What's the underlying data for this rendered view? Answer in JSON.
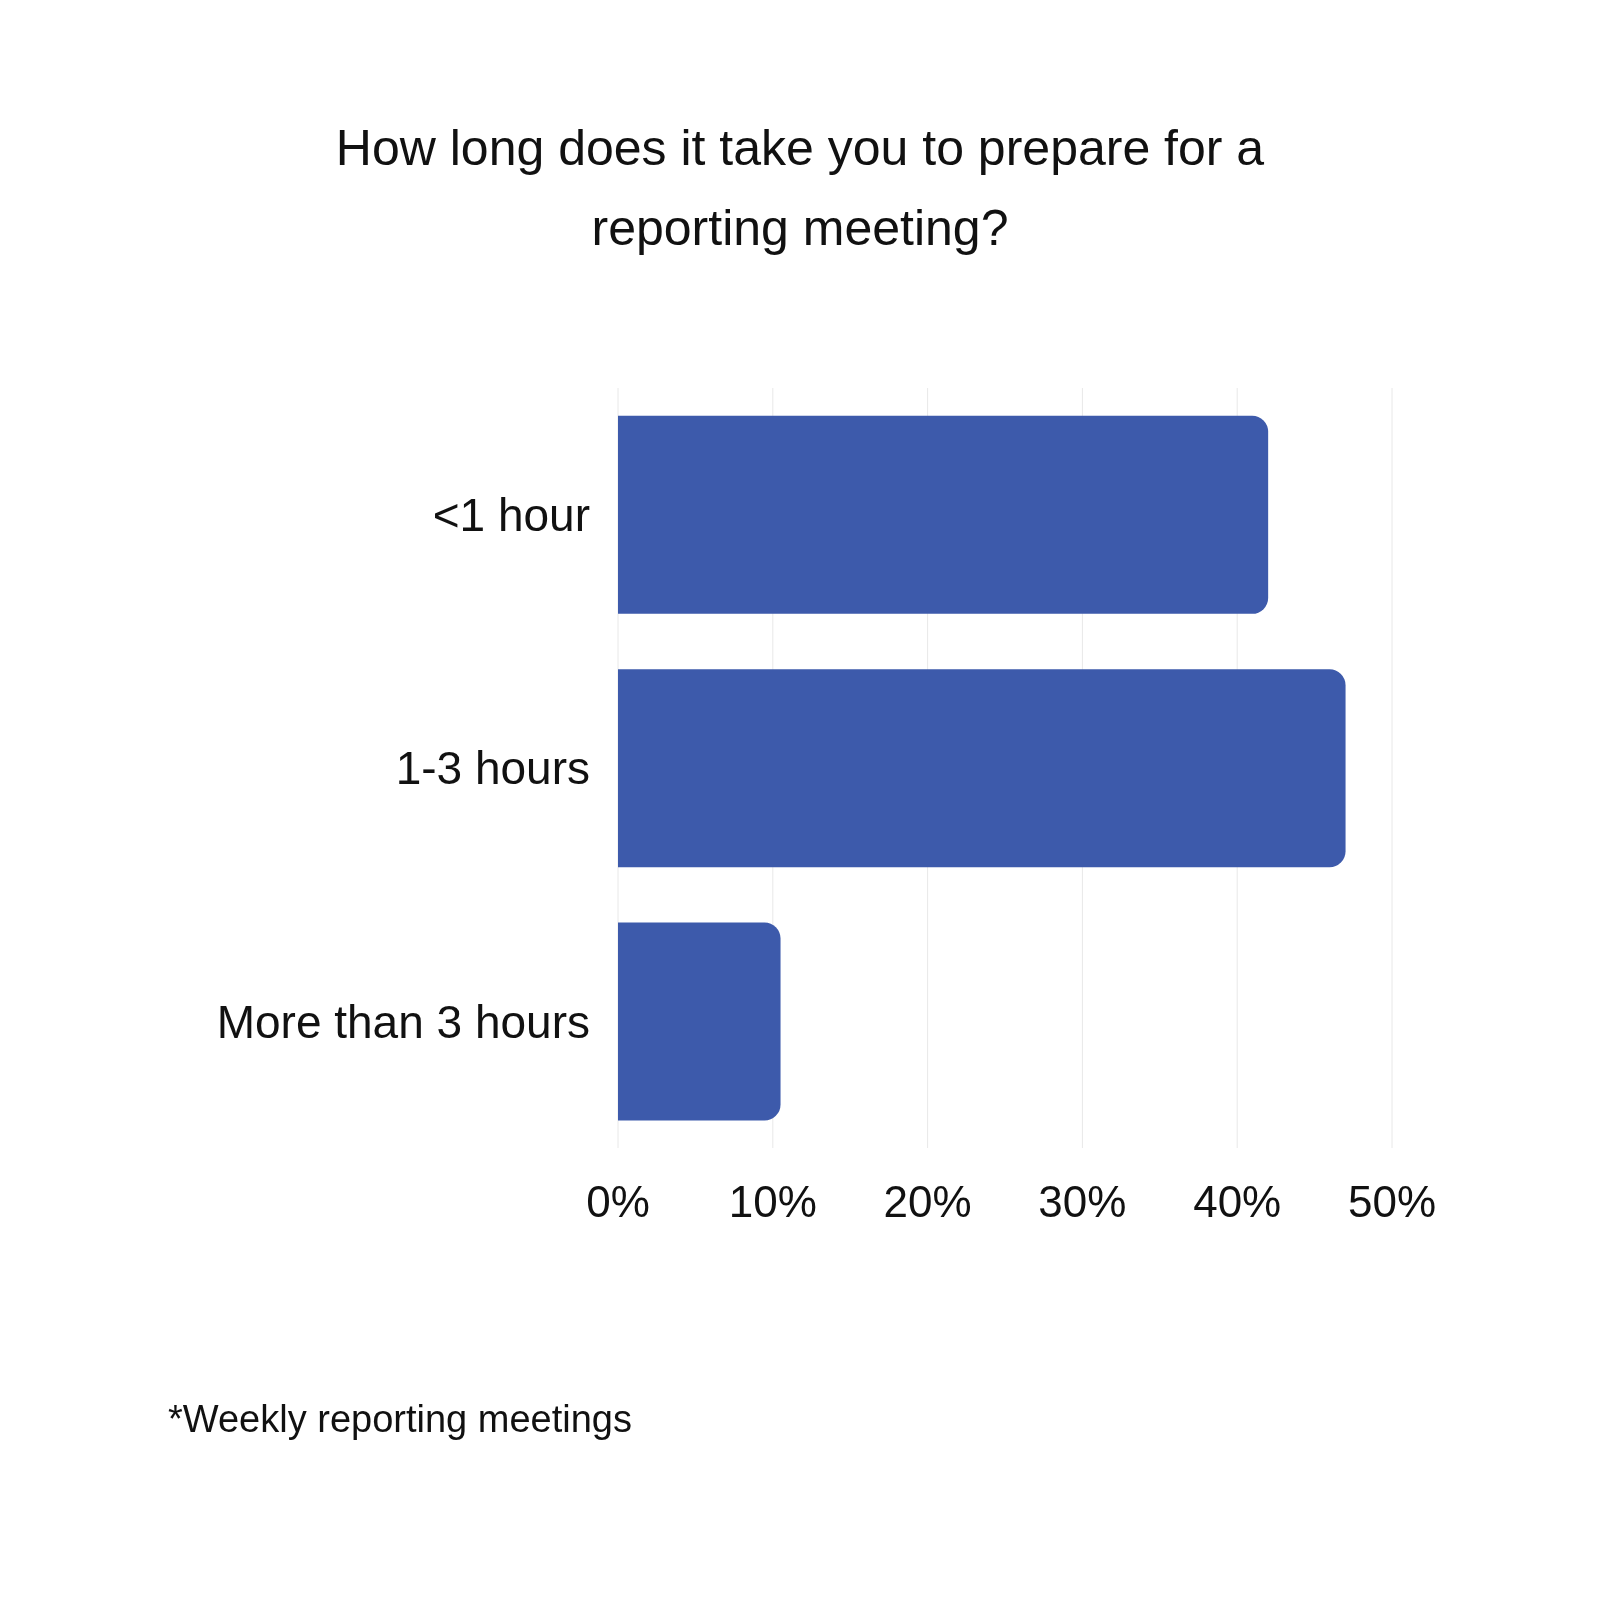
{
  "chart_data": {
    "type": "bar",
    "orientation": "horizontal",
    "title": "How long does it take you to prepare for a reporting meeting?",
    "categories": [
      "<1 hour",
      "1-3 hours",
      "More than 3 hours"
    ],
    "values": [
      42,
      47,
      10.5
    ],
    "color": "#3d5aab",
    "xlim": [
      0,
      50
    ],
    "xticks": [
      {
        "value": 0,
        "label": "0%"
      },
      {
        "value": 10,
        "label": "10%"
      },
      {
        "value": 20,
        "label": "20%"
      },
      {
        "value": 30,
        "label": "30%"
      },
      {
        "value": 40,
        "label": "40%"
      },
      {
        "value": 50,
        "label": "50%"
      }
    ],
    "grid": "x",
    "annotations": [
      "*Weekly reporting meetings"
    ]
  }
}
